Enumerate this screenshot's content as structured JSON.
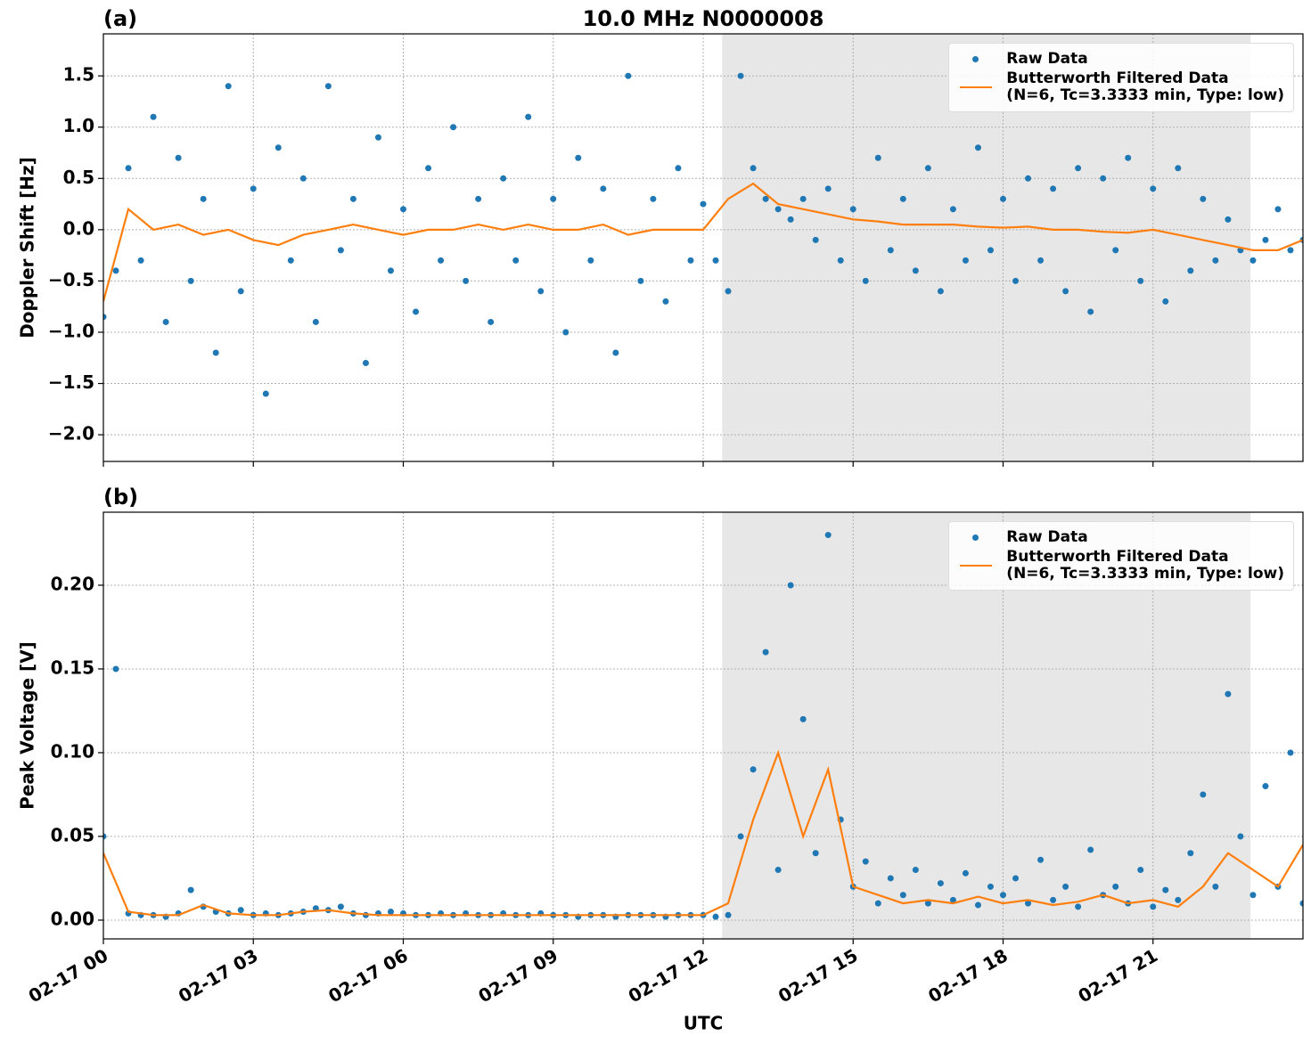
{
  "charts": [
    {
      "type": "scatter",
      "title": "10.0 MHz N0000008",
      "panel_label": "(a)",
      "ylabel": "Doppler Shift [Hz]",
      "xlim": [
        0,
        24
      ],
      "ylim": [
        -2.26,
        1.91
      ],
      "yticks": [
        {
          "value": -2.0,
          "label": "−2.0"
        },
        {
          "value": -1.5,
          "label": "−1.5"
        },
        {
          "value": -1.0,
          "label": "−1.0"
        },
        {
          "value": -0.5,
          "label": "−0.5"
        },
        {
          "value": 0.0,
          "label": "0.0"
        },
        {
          "value": 0.5,
          "label": "0.5"
        },
        {
          "value": 1.0,
          "label": "1.0"
        },
        {
          "value": 1.5,
          "label": "1.5"
        }
      ],
      "grid": true,
      "legend": "upper right",
      "shaded_span": [
        12.38,
        22.95
      ],
      "series": [
        {
          "name": "Raw Data",
          "style": "marker",
          "color": "#1f77b4",
          "x": [
            0,
            0.25,
            0.5,
            0.75,
            1,
            1.25,
            1.5,
            1.75,
            2,
            2.25,
            2.5,
            2.75,
            3,
            3.25,
            3.5,
            3.75,
            4,
            4.25,
            4.5,
            4.75,
            5,
            5.25,
            5.5,
            5.75,
            6,
            6.25,
            6.5,
            6.75,
            7,
            7.25,
            7.5,
            7.75,
            8,
            8.25,
            8.5,
            8.75,
            9,
            9.25,
            9.5,
            9.75,
            10,
            10.25,
            10.5,
            10.75,
            11,
            11.25,
            11.5,
            11.75,
            12,
            12.25,
            12.5,
            12.75,
            13,
            13.25,
            13.5,
            13.75,
            14,
            14.25,
            14.5,
            14.75,
            15,
            15.25,
            15.5,
            15.75,
            16,
            16.25,
            16.5,
            16.75,
            17,
            17.25,
            17.5,
            17.75,
            18,
            18.25,
            18.5,
            18.75,
            19,
            19.25,
            19.5,
            19.75,
            20,
            20.25,
            20.5,
            20.75,
            21,
            21.25,
            21.5,
            21.75,
            22,
            22.25,
            22.5,
            22.75,
            23,
            23.25,
            23.5,
            23.75,
            24
          ],
          "values": [
            -0.85,
            -0.4,
            0.6,
            -0.3,
            1.1,
            -0.9,
            0.7,
            -0.5,
            0.3,
            -1.2,
            1.4,
            -0.6,
            0.4,
            -1.6,
            0.8,
            -0.3,
            0.5,
            -0.9,
            1.4,
            -0.2,
            0.3,
            -1.3,
            0.9,
            -0.4,
            0.2,
            -0.8,
            0.6,
            -0.3,
            1.0,
            -0.5,
            0.3,
            -0.9,
            0.5,
            -0.3,
            1.1,
            -0.6,
            0.3,
            -1.0,
            0.7,
            -0.3,
            0.4,
            -1.2,
            1.5,
            -0.5,
            0.3,
            -0.7,
            0.6,
            -0.3,
            0.25,
            -0.3,
            -0.6,
            1.5,
            0.6,
            0.3,
            0.2,
            0.1,
            0.3,
            -0.1,
            0.4,
            -0.3,
            0.2,
            -0.5,
            0.7,
            -0.2,
            0.3,
            -0.4,
            0.6,
            -0.6,
            0.2,
            -0.3,
            0.8,
            -0.2,
            0.3,
            -0.5,
            0.5,
            -0.3,
            0.4,
            -0.6,
            0.6,
            -0.8,
            0.5,
            -0.2,
            0.7,
            -0.5,
            0.4,
            -0.7,
            0.6,
            -0.4,
            0.3,
            -0.3,
            0.1,
            -0.2,
            -0.3,
            -0.1,
            0.2,
            -0.2,
            -0.1
          ]
        },
        {
          "name": "Butterworth Filtered Data\n(N=6, Tc=3.3333 min, Type: low)",
          "style": "line",
          "color": "#ff7f0e",
          "x": [
            0,
            0.5,
            1,
            1.5,
            2,
            2.5,
            3,
            3.5,
            4,
            4.5,
            5,
            5.5,
            6,
            6.5,
            7,
            7.5,
            8,
            8.5,
            9,
            9.5,
            10,
            10.5,
            11,
            11.5,
            12,
            12.5,
            13,
            13.5,
            14,
            14.5,
            15,
            15.5,
            16,
            16.5,
            17,
            17.5,
            18,
            18.5,
            19,
            19.5,
            20,
            20.5,
            21,
            21.5,
            22,
            22.5,
            23,
            23.5,
            24
          ],
          "values": [
            -0.7,
            0.2,
            0.0,
            0.05,
            -0.05,
            0.0,
            -0.1,
            -0.15,
            -0.05,
            0.0,
            0.05,
            0.0,
            -0.05,
            0.0,
            0.0,
            0.05,
            0.0,
            0.05,
            0.0,
            0.0,
            0.05,
            -0.05,
            0.0,
            0.0,
            0.0,
            0.3,
            0.45,
            0.25,
            0.2,
            0.15,
            0.1,
            0.08,
            0.05,
            0.05,
            0.05,
            0.03,
            0.02,
            0.03,
            0.0,
            0.0,
            -0.02,
            -0.03,
            0.0,
            -0.05,
            -0.1,
            -0.15,
            -0.2,
            -0.2,
            -0.1
          ]
        }
      ]
    },
    {
      "type": "scatter",
      "panel_label": "(b)",
      "ylabel": "Peak Voltage [V]",
      "xlabel": "UTC",
      "xlim": [
        0,
        24
      ],
      "ylim": [
        -0.0112,
        0.2436
      ],
      "xticks": [
        {
          "value": 0,
          "label": "02-17 00"
        },
        {
          "value": 3,
          "label": "02-17 03"
        },
        {
          "value": 6,
          "label": "02-17 06"
        },
        {
          "value": 9,
          "label": "02-17 09"
        },
        {
          "value": 12,
          "label": "02-17 12"
        },
        {
          "value": 15,
          "label": "02-17 15"
        },
        {
          "value": 18,
          "label": "02-17 18"
        },
        {
          "value": 21,
          "label": "02-17 21"
        }
      ],
      "yticks": [
        {
          "value": 0.0,
          "label": "0.00"
        },
        {
          "value": 0.05,
          "label": "0.05"
        },
        {
          "value": 0.1,
          "label": "0.10"
        },
        {
          "value": 0.15,
          "label": "0.15"
        },
        {
          "value": 0.2,
          "label": "0.20"
        }
      ],
      "grid": true,
      "legend": "upper right",
      "shaded_span": [
        12.38,
        22.95
      ],
      "series": [
        {
          "name": "Raw Data",
          "style": "marker",
          "color": "#1f77b4",
          "x": [
            0,
            0.25,
            0.5,
            0.75,
            1,
            1.25,
            1.5,
            1.75,
            2,
            2.25,
            2.5,
            2.75,
            3,
            3.25,
            3.5,
            3.75,
            4,
            4.25,
            4.5,
            4.75,
            5,
            5.25,
            5.5,
            5.75,
            6,
            6.25,
            6.5,
            6.75,
            7,
            7.25,
            7.5,
            7.75,
            8,
            8.25,
            8.5,
            8.75,
            9,
            9.25,
            9.5,
            9.75,
            10,
            10.25,
            10.5,
            10.75,
            11,
            11.25,
            11.5,
            11.75,
            12,
            12.25,
            12.5,
            12.75,
            13,
            13.25,
            13.5,
            13.75,
            14,
            14.25,
            14.5,
            14.75,
            15,
            15.25,
            15.5,
            15.75,
            16,
            16.25,
            16.5,
            16.75,
            17,
            17.25,
            17.5,
            17.75,
            18,
            18.25,
            18.5,
            18.75,
            19,
            19.25,
            19.5,
            19.75,
            20,
            20.25,
            20.5,
            20.75,
            21,
            21.25,
            21.5,
            21.75,
            22,
            22.25,
            22.5,
            22.75,
            23,
            23.25,
            23.5,
            23.75,
            24
          ],
          "values": [
            0.05,
            0.15,
            0.004,
            0.003,
            0.003,
            0.002,
            0.004,
            0.018,
            0.008,
            0.005,
            0.004,
            0.006,
            0.003,
            0.004,
            0.003,
            0.004,
            0.005,
            0.007,
            0.006,
            0.008,
            0.004,
            0.003,
            0.004,
            0.005,
            0.004,
            0.003,
            0.003,
            0.004,
            0.003,
            0.004,
            0.003,
            0.003,
            0.004,
            0.003,
            0.003,
            0.004,
            0.003,
            0.003,
            0.002,
            0.003,
            0.003,
            0.002,
            0.003,
            0.003,
            0.003,
            0.002,
            0.003,
            0.003,
            0.003,
            0.002,
            0.003,
            0.05,
            0.09,
            0.16,
            0.03,
            0.2,
            0.12,
            0.04,
            0.23,
            0.06,
            0.02,
            0.035,
            0.01,
            0.025,
            0.015,
            0.03,
            0.01,
            0.022,
            0.012,
            0.028,
            0.009,
            0.02,
            0.015,
            0.025,
            0.01,
            0.036,
            0.012,
            0.02,
            0.008,
            0.042,
            0.015,
            0.02,
            0.01,
            0.03,
            0.008,
            0.018,
            0.012,
            0.04,
            0.075,
            0.02,
            0.135,
            0.05,
            0.015,
            0.08,
            0.02,
            0.1,
            0.01
          ]
        },
        {
          "name": "Butterworth Filtered Data\n(N=6, Tc=3.3333 min, Type: low)",
          "style": "line",
          "color": "#ff7f0e",
          "x": [
            0,
            0.5,
            1,
            1.5,
            2,
            2.5,
            3,
            3.5,
            4,
            4.5,
            5,
            5.5,
            6,
            6.5,
            7,
            7.5,
            8,
            8.5,
            9,
            9.5,
            10,
            10.5,
            11,
            11.5,
            12,
            12.5,
            13,
            13.5,
            14,
            14.5,
            15,
            15.5,
            16,
            16.5,
            17,
            17.5,
            18,
            18.5,
            19,
            19.5,
            20,
            20.5,
            21,
            21.5,
            22,
            22.5,
            23,
            23.5,
            24
          ],
          "values": [
            0.04,
            0.005,
            0.003,
            0.003,
            0.009,
            0.004,
            0.003,
            0.003,
            0.005,
            0.006,
            0.004,
            0.003,
            0.003,
            0.003,
            0.003,
            0.003,
            0.003,
            0.003,
            0.003,
            0.003,
            0.003,
            0.003,
            0.003,
            0.003,
            0.003,
            0.01,
            0.06,
            0.1,
            0.05,
            0.09,
            0.02,
            0.015,
            0.01,
            0.012,
            0.01,
            0.014,
            0.01,
            0.012,
            0.009,
            0.011,
            0.015,
            0.01,
            0.012,
            0.008,
            0.02,
            0.04,
            0.03,
            0.02,
            0.045
          ]
        }
      ]
    }
  ]
}
